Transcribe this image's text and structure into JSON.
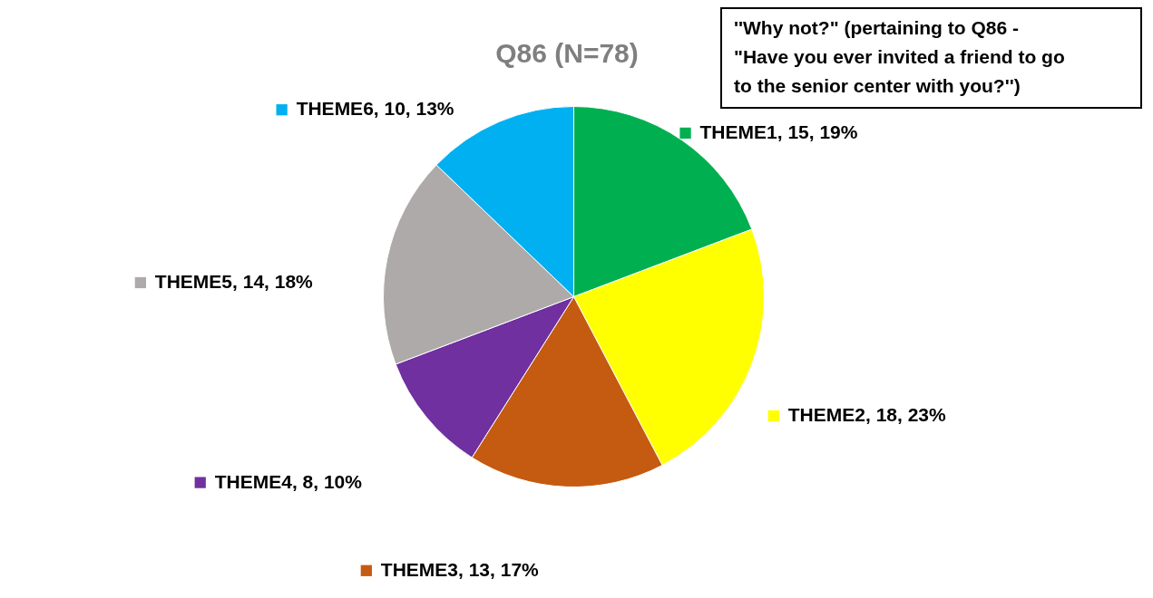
{
  "chart_data": {
    "type": "pie",
    "title": "Q86 (N=78)",
    "categories": [
      "THEME1",
      "THEME2",
      "THEME3",
      "THEME4",
      "THEME5",
      "THEME6"
    ],
    "values": [
      15,
      18,
      13,
      8,
      14,
      10
    ],
    "colors": [
      "#00b050",
      "#ffff00",
      "#c55a11",
      "#7030a0",
      "#aeaaaa",
      "#00b0f0"
    ],
    "value_labels": [
      "15, 19%",
      "18, 23%",
      "13, 17%",
      "8, 10%",
      "14, 18%",
      "10, 13%"
    ],
    "annotations": [
      "''Why not?\" (pertaining to Q86 - \"Have you ever invited a friend to go to the senior center with you?'')"
    ],
    "legend": "bottom left"
  }
}
